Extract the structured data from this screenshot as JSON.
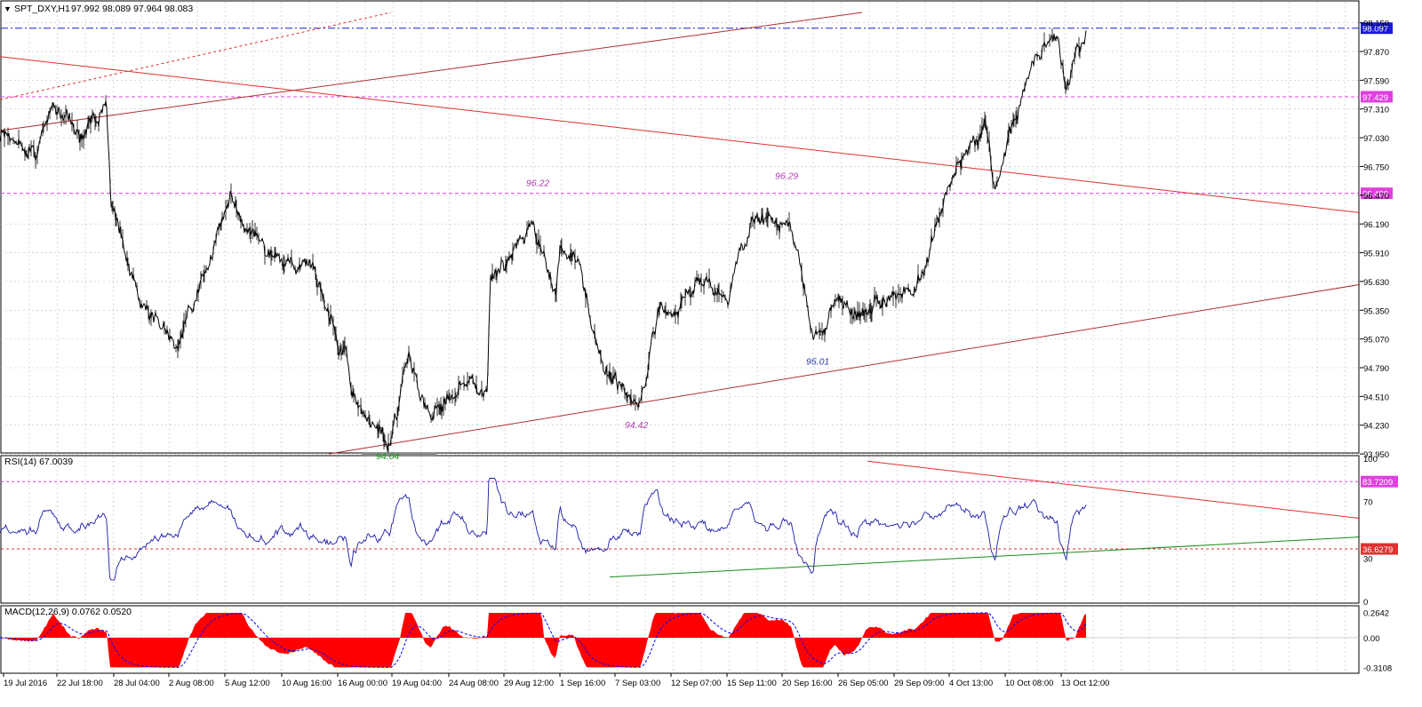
{
  "header": {
    "symbol": "SPT_DXY,H1",
    "quote": "97.992 98.089 97.964 98.083"
  },
  "colors": {
    "background": "#ffffff",
    "grid": "#c0c0c0",
    "price": "#000000",
    "trendline": "#b03030",
    "red_line": "#e03030",
    "level_magenta": "#e040e0",
    "level_blue": "#1a1ad0",
    "rsi": "#1a1aaa",
    "rsi_support": "#1a8c1a",
    "macd_hist": "#ff0000",
    "macd_signal": "#0000ff"
  },
  "chart_data": [
    {
      "panel": "price",
      "type": "line",
      "title": "SPT_DXY,H1",
      "ylim": [
        93.95,
        98.15
      ],
      "yticks": [
        "98.150",
        "97.870",
        "97.590",
        "97.310",
        "97.030",
        "96.750",
        "96.470",
        "96.190",
        "95.910",
        "95.630",
        "95.350",
        "95.070",
        "94.790",
        "94.510",
        "94.230",
        "93.950"
      ],
      "x_labels": [
        "19 Jul 2016",
        "22 Jul 18:00",
        "28 Jul 04:00",
        "2 Aug 08:00",
        "5 Aug 12:00",
        "10 Aug 16:00",
        "16 Aug 00:00",
        "19 Aug 04:00",
        "24 Aug 08:00",
        "29 Aug 12:00",
        "1 Sep 16:00",
        "7 Sep 03:00",
        "12 Sep 07:00",
        "15 Sep 11:00",
        "20 Sep 16:00",
        "26 Sep 05:00",
        "29 Sep 09:00",
        "4 Oct 13:00",
        "10 Oct 08:00",
        "13 Oct 12:00"
      ],
      "series_keypoints_t": [
        0,
        40,
        60,
        90,
        120,
        125,
        155,
        200,
        260,
        300,
        345,
        390,
        395,
        438,
        460,
        485,
        520,
        548,
        552,
        600,
        625,
        630,
        650,
        680,
        720,
        740,
        790,
        820,
        845,
        890,
        915,
        940,
        965,
        990,
        1030,
        1060,
        1080,
        1108,
        1120,
        1165,
        1190,
        1200,
        1222
      ],
      "series_keypoints_v": [
        97.0,
        96.9,
        97.4,
        97.1,
        97.4,
        96.5,
        95.5,
        95.0,
        96.45,
        95.9,
        95.8,
        94.9,
        94.5,
        94.04,
        94.9,
        94.3,
        94.7,
        94.5,
        95.6,
        96.2,
        95.5,
        95.9,
        95.8,
        94.8,
        94.42,
        95.3,
        95.6,
        95.5,
        96.2,
        96.2,
        95.01,
        95.5,
        95.3,
        95.5,
        95.6,
        96.3,
        96.8,
        97.2,
        96.6,
        97.8,
        98.09,
        97.5,
        98.08
      ],
      "levels": [
        {
          "label": "98.097",
          "value": 98.097,
          "style": "dash-dot",
          "color": "#1a1ad0"
        },
        {
          "label": "97.429",
          "value": 97.429,
          "style": "dash",
          "color": "#e040e0"
        },
        {
          "label": "96.489",
          "value": 96.489,
          "style": "dash",
          "color": "#e040e0"
        }
      ],
      "trendlines": [
        {
          "name": "lower-channel",
          "t": [
            370,
            1530
          ],
          "v": [
            93.95,
            95.6
          ],
          "color": "#b03030"
        },
        {
          "name": "upper-channel",
          "t": [
            0,
            970
          ],
          "v": [
            97.1,
            98.25
          ],
          "color": "#b03030"
        },
        {
          "name": "upper-channel-dashed",
          "t": [
            0,
            440
          ],
          "v": [
            97.4,
            98.25
          ],
          "color": "#e03030",
          "dashed": true
        },
        {
          "name": "descending-resistance",
          "t": [
            0,
            1530
          ],
          "v": [
            97.82,
            96.3
          ],
          "color": "#e03030"
        }
      ],
      "annotations": [
        {
          "text": "96.22",
          "t": 606,
          "v": 96.56,
          "color": "#b040b0"
        },
        {
          "text": "96.29",
          "t": 886,
          "v": 96.63,
          "color": "#b040b0"
        },
        {
          "text": "95.01",
          "t": 921,
          "v": 94.82,
          "color": "#2a3ab0"
        },
        {
          "text": "94.42",
          "t": 717,
          "v": 94.2,
          "color": "#b040b0"
        },
        {
          "text": "94.04",
          "t": 437,
          "v": 93.9,
          "color": "#1a9c1a"
        }
      ]
    },
    {
      "panel": "rsi",
      "type": "line",
      "title": "RSI(14) 67.0039",
      "ylim": [
        0,
        100
      ],
      "yticks": [
        "100",
        "70",
        "30",
        "0"
      ],
      "levels": [
        {
          "label": "83.7209",
          "value": 83.7209,
          "color": "#e040e0"
        },
        {
          "label": "36.6279",
          "value": 36.6279,
          "color": "#e03030"
        }
      ],
      "trendlines": [
        {
          "name": "rsi-resistance",
          "t": [
            976,
            1530
          ],
          "v": [
            98,
            58
          ],
          "color": "#e03030"
        },
        {
          "name": "rsi-support",
          "t": [
            686,
            1530
          ],
          "v": [
            17,
            45
          ],
          "color": "#1a8c1a"
        }
      ]
    },
    {
      "panel": "macd",
      "type": "area",
      "title": "MACD(12,26,9) 0.0762 0.0520",
      "ylim": [
        -0.3108,
        0.2642
      ],
      "yticks": [
        "0.2642",
        "0.00",
        "-0.3108"
      ]
    }
  ]
}
